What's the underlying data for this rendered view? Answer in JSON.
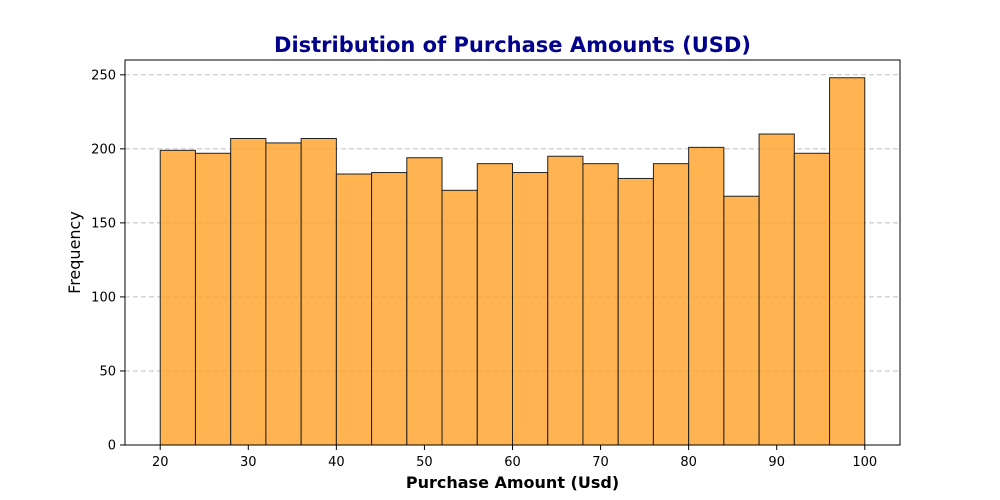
{
  "chart_data": {
    "type": "bar",
    "title": "Distribution of Purchase Amounts (USD)",
    "xlabel": "Purchase Amount (Usd)",
    "ylabel": "Frequency",
    "bin_edges": [
      20,
      24,
      28,
      32,
      36,
      40,
      44,
      48,
      52,
      56,
      60,
      64,
      68,
      72,
      76,
      80,
      84,
      88,
      92,
      96,
      100
    ],
    "values": [
      199,
      197,
      207,
      204,
      207,
      183,
      184,
      194,
      172,
      190,
      184,
      195,
      190,
      180,
      190,
      201,
      168,
      210,
      197,
      248
    ],
    "xlim": [
      16,
      104
    ],
    "ylim": [
      0,
      260
    ],
    "xticks": [
      20,
      30,
      40,
      50,
      60,
      70,
      80,
      90,
      100
    ],
    "yticks": [
      0,
      50,
      100,
      150,
      200,
      250
    ],
    "grid": "y-dashed",
    "bar_color": "#ffa126",
    "edge_color": "#222222",
    "title_color": "#00008b"
  }
}
